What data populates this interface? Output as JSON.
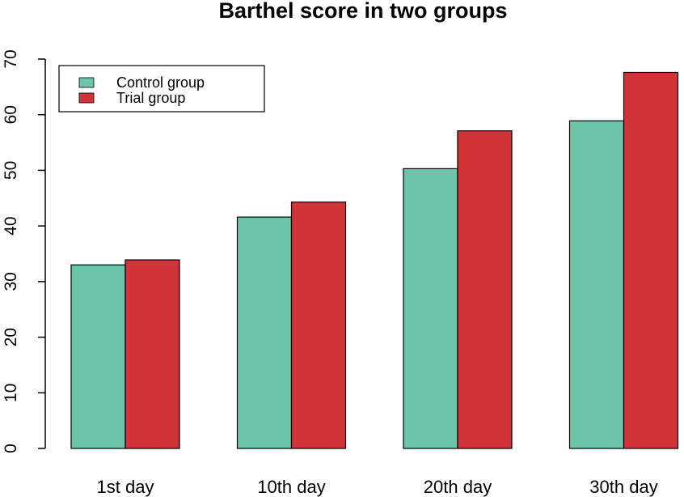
{
  "chart_data": {
    "type": "bar",
    "title": "Barthel score in two groups",
    "categories": [
      "1st day",
      "10th day",
      "20th day",
      "30th day"
    ],
    "series": [
      {
        "name": "Control group",
        "values": [
          33,
          41.6,
          50.3,
          58.9
        ],
        "color": "#6cc5a8"
      },
      {
        "name": "Trial group",
        "values": [
          33.9,
          44.3,
          57.1,
          67.6
        ],
        "color": "#d13438"
      }
    ],
    "ylim": [
      0,
      70
    ],
    "yticks": [
      0,
      10,
      20,
      30,
      40,
      50,
      60,
      70
    ],
    "xlabel": "",
    "ylabel": "",
    "grid": false,
    "legend_position": "top-left"
  }
}
